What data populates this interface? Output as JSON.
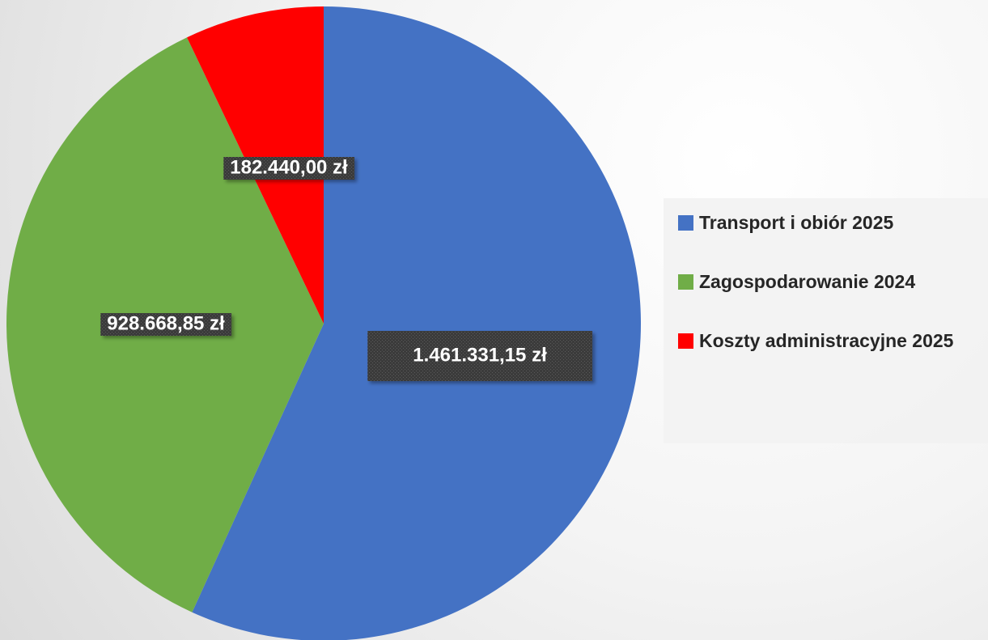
{
  "chart_data": {
    "type": "pie",
    "categories": [
      "Transport i obiór 2025",
      "Zagospodarowanie 2024",
      "Koszty administracyjne 2025"
    ],
    "values": [
      1461331.15,
      928668.85,
      182440.0
    ],
    "value_labels": [
      "1.461.331,15 zł",
      "928.668,85 zł",
      "182.440,00 zł"
    ],
    "colors": [
      "#4472c4",
      "#70ad47",
      "#ff0000"
    ],
    "legend": "right"
  }
}
